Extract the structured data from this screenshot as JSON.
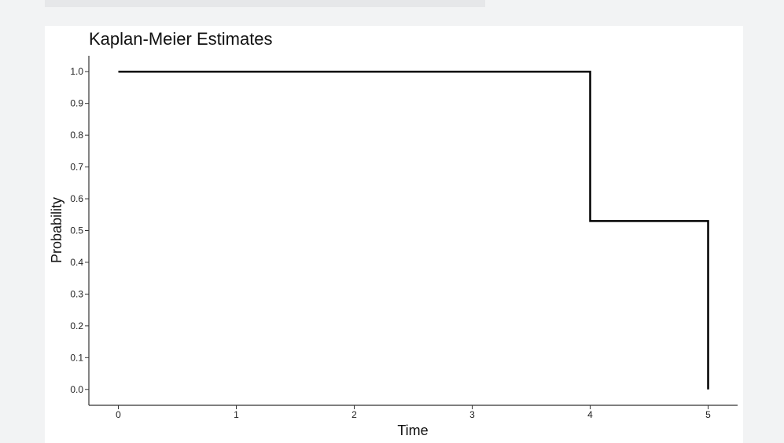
{
  "chart_data": {
    "type": "line",
    "step": true,
    "title": "Kaplan-Meier Estimates",
    "xlabel": "Time",
    "ylabel": "Probability",
    "xlim": [
      -0.25,
      5.25
    ],
    "ylim": [
      -0.05,
      1.05
    ],
    "xticks": [
      0,
      1,
      2,
      3,
      4,
      5
    ],
    "xtick_labels": [
      "0",
      "1",
      "2",
      "3",
      "4",
      "5"
    ],
    "yticks": [
      0.0,
      0.1,
      0.2,
      0.3,
      0.4,
      0.5,
      0.6,
      0.7,
      0.8,
      0.9,
      1.0
    ],
    "ytick_labels": [
      "0.0",
      "0.1",
      "0.2",
      "0.3",
      "0.4",
      "0.5",
      "0.6",
      "0.7",
      "0.8",
      "0.9",
      "1.0"
    ],
    "grid": false,
    "line_color": "#000000",
    "series": [
      {
        "x": [
          0,
          4,
          4,
          5,
          5
        ],
        "y": [
          1.0,
          1.0,
          0.53,
          0.53,
          0.0
        ]
      }
    ]
  }
}
